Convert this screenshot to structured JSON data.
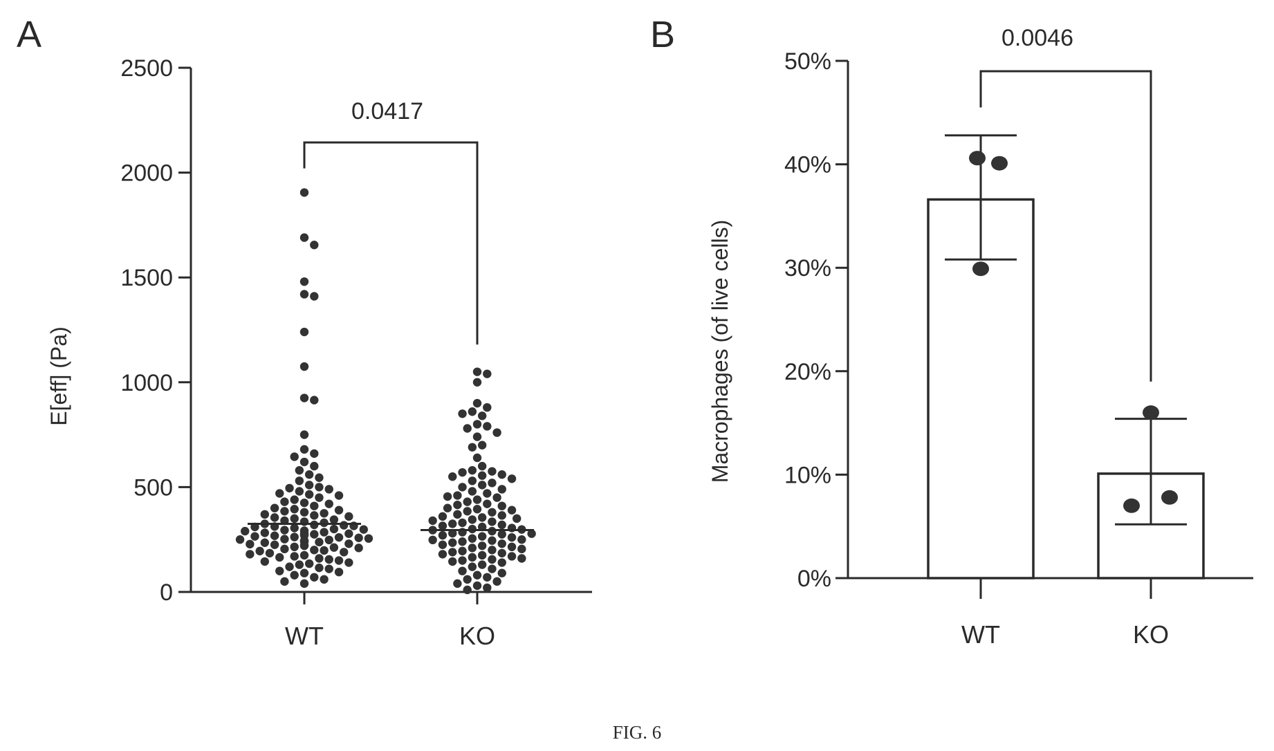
{
  "figure_label": "FIG. 6",
  "chart_data": [
    {
      "type": "scatter",
      "panel": "A",
      "title": "",
      "ylabel": "E[eff] (Pa)",
      "xlabel": "",
      "categories": [
        "WT",
        "KO"
      ],
      "ylim": [
        0,
        2500
      ],
      "yticks": [
        "0",
        "500",
        "1000",
        "1500",
        "2000",
        "2500"
      ],
      "yticks_values": [
        0,
        500,
        1000,
        1500,
        2000,
        2500
      ],
      "grid": false,
      "medians": [
        325,
        295
      ],
      "comparison": {
        "between": [
          "WT",
          "KO"
        ],
        "p_value": "0.0417"
      },
      "series": [
        {
          "category": "WT",
          "values": [
            1905,
            1690,
            1655,
            1480,
            1420,
            1410,
            1240,
            1075,
            925,
            915,
            750,
            680,
            660,
            645,
            620,
            600,
            580,
            560,
            545,
            530,
            510,
            500,
            495,
            490,
            480,
            470,
            465,
            460,
            450,
            440,
            430,
            425,
            420,
            410,
            400,
            395,
            390,
            385,
            380,
            375,
            370,
            365,
            360,
            355,
            350,
            345,
            340,
            335,
            330,
            325,
            320,
            318,
            315,
            312,
            310,
            305,
            300,
            298,
            295,
            292,
            290,
            285,
            282,
            280,
            278,
            275,
            272,
            270,
            268,
            265,
            262,
            260,
            258,
            255,
            252,
            250,
            248,
            245,
            242,
            240,
            238,
            235,
            230,
            228,
            225,
            222,
            220,
            215,
            212,
            210,
            205,
            200,
            198,
            195,
            190,
            185,
            180,
            175,
            170,
            165,
            160,
            155,
            150,
            145,
            140,
            135,
            130,
            120,
            115,
            110,
            100,
            95,
            90,
            80,
            70,
            60,
            50,
            40
          ]
        },
        {
          "category": "KO",
          "values": [
            1050,
            1040,
            1000,
            900,
            880,
            860,
            850,
            840,
            800,
            790,
            780,
            760,
            740,
            700,
            690,
            640,
            600,
            580,
            575,
            570,
            560,
            555,
            550,
            540,
            530,
            520,
            510,
            500,
            490,
            480,
            470,
            460,
            455,
            450,
            440,
            430,
            420,
            415,
            410,
            400,
            395,
            390,
            385,
            380,
            370,
            365,
            360,
            355,
            350,
            345,
            340,
            335,
            330,
            325,
            320,
            315,
            310,
            305,
            300,
            298,
            295,
            290,
            285,
            280,
            278,
            275,
            270,
            265,
            260,
            255,
            250,
            248,
            245,
            240,
            235,
            230,
            225,
            220,
            215,
            210,
            205,
            200,
            195,
            190,
            185,
            180,
            175,
            170,
            165,
            160,
            155,
            150,
            145,
            140,
            130,
            120,
            110,
            100,
            90,
            80,
            70,
            60,
            50,
            40,
            30,
            20,
            10
          ]
        }
      ]
    },
    {
      "type": "bar",
      "panel": "B",
      "title": "",
      "ylabel": "Macrophages (of live cells)",
      "xlabel": "",
      "categories": [
        "WT",
        "KO"
      ],
      "values": [
        36.6,
        10.1
      ],
      "error": [
        {
          "low": 30.8,
          "high": 42.8
        },
        {
          "low": 5.2,
          "high": 15.4
        }
      ],
      "points": [
        [
          40.6,
          40.1,
          29.9
        ],
        [
          16.0,
          7.0,
          7.8
        ]
      ],
      "ylim": [
        0,
        50
      ],
      "yticks": [
        "0%",
        "10%",
        "20%",
        "30%",
        "40%",
        "50%"
      ],
      "yticks_values": [
        0,
        10,
        20,
        30,
        40,
        50
      ],
      "grid": false,
      "comparison": {
        "between": [
          "WT",
          "KO"
        ],
        "p_value": "0.0046"
      }
    }
  ]
}
